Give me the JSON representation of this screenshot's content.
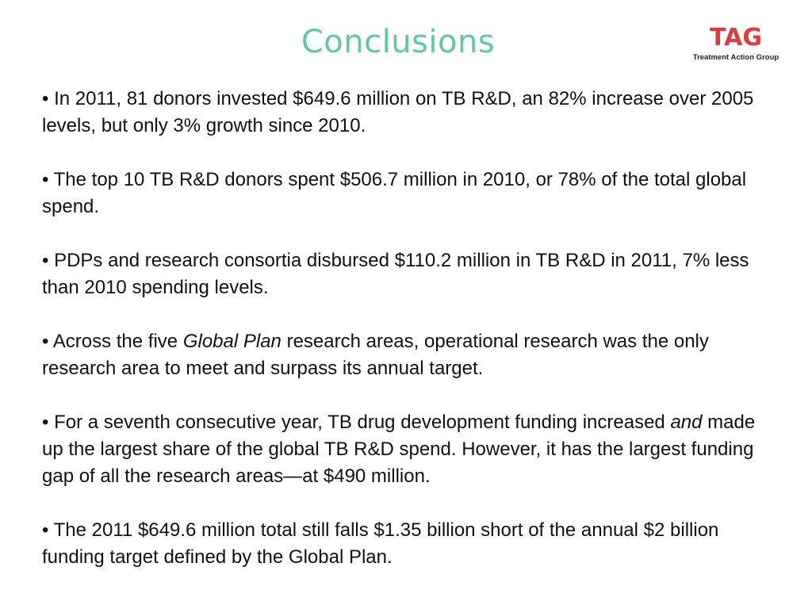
{
  "slide": {
    "title": "Conclusions",
    "logo": {
      "mark": "TAG",
      "subtitle": "Treatment Action Group"
    },
    "bullets": [
      {
        "bullet": "•",
        "text": "In 2011, 81 donors invested $649.6 million on TB R&D, an 82% increase over 2005 levels, but only 3% growth since 2010."
      },
      {
        "bullet": "•",
        "text": "The top 10 TB R&D donors spent $506.7 million in 2010, or 78% of the total global spend."
      },
      {
        "bullet": "•",
        "text": "PDPs and research consortia disbursed $110.2 million in TB R&D in 2011, 7% less than 2010 spending levels."
      },
      {
        "bullet": "•",
        "before": "Across the five",
        "emphasis": "Global Plan",
        "after": "research areas, operational research was the only research area to meet and surpass its annual target."
      },
      {
        "bullet": "•",
        "before": "For a seventh consecutive year, TB drug development funding increased",
        "emphasis": "and",
        "after": "made up the largest share of the global TB R&D spend. However, it has the largest funding gap of all the research areas—at $490 million."
      },
      {
        "bullet": "•",
        "text": "The 2011 $649.6 million total still falls $1.35 billion short of the annual $2 billion funding target defined by the Global Plan."
      }
    ]
  },
  "colors": {
    "title": "#5ec9a5",
    "logo_mark": "#e2383f",
    "text": "#111111"
  }
}
